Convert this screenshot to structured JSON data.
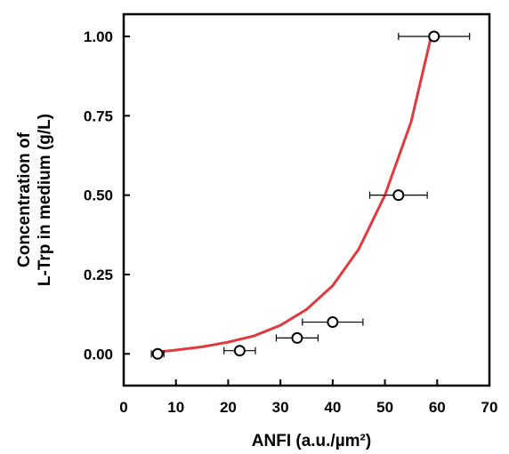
{
  "chart_data": {
    "type": "scatter",
    "xlabel": "ANFI (a.u./µm²)",
    "ylabel_line1": "Concentration of",
    "ylabel_line2": "L-Trp in medium (g/L)",
    "xlim": [
      0,
      70
    ],
    "ylim": [
      -0.1,
      1.07
    ],
    "xticks": [
      0,
      10,
      20,
      30,
      40,
      50,
      60,
      70
    ],
    "xtick_labels": [
      "0",
      "10",
      "20",
      "30",
      "40",
      "50",
      "60",
      "70"
    ],
    "yticks": [
      0.0,
      0.25,
      0.5,
      0.75,
      1.0
    ],
    "ytick_labels": [
      "0.00",
      "0.25",
      "0.50",
      "0.75",
      "1.00"
    ],
    "grid": false,
    "series": [
      {
        "points": [
          {
            "x": 6.5,
            "y": 0.0,
            "xerr": 1.2
          },
          {
            "x": 22.2,
            "y": 0.01,
            "xerr": 3.0
          },
          {
            "x": 33.2,
            "y": 0.05,
            "xerr": 4.0
          },
          {
            "x": 40.0,
            "y": 0.1,
            "xerr": 5.8
          },
          {
            "x": 52.6,
            "y": 0.5,
            "xerr": 5.5
          },
          {
            "x": 59.4,
            "y": 1.0,
            "xerr": 6.8
          }
        ]
      }
    ],
    "fit_curve": {
      "color": "#e0393e",
      "x": [
        6.0,
        10,
        15,
        20,
        25,
        30,
        35,
        40,
        45,
        50,
        55,
        59.0
      ],
      "y": [
        0.005,
        0.012,
        0.022,
        0.037,
        0.057,
        0.09,
        0.14,
        0.215,
        0.33,
        0.5,
        0.73,
        1.01
      ]
    }
  }
}
